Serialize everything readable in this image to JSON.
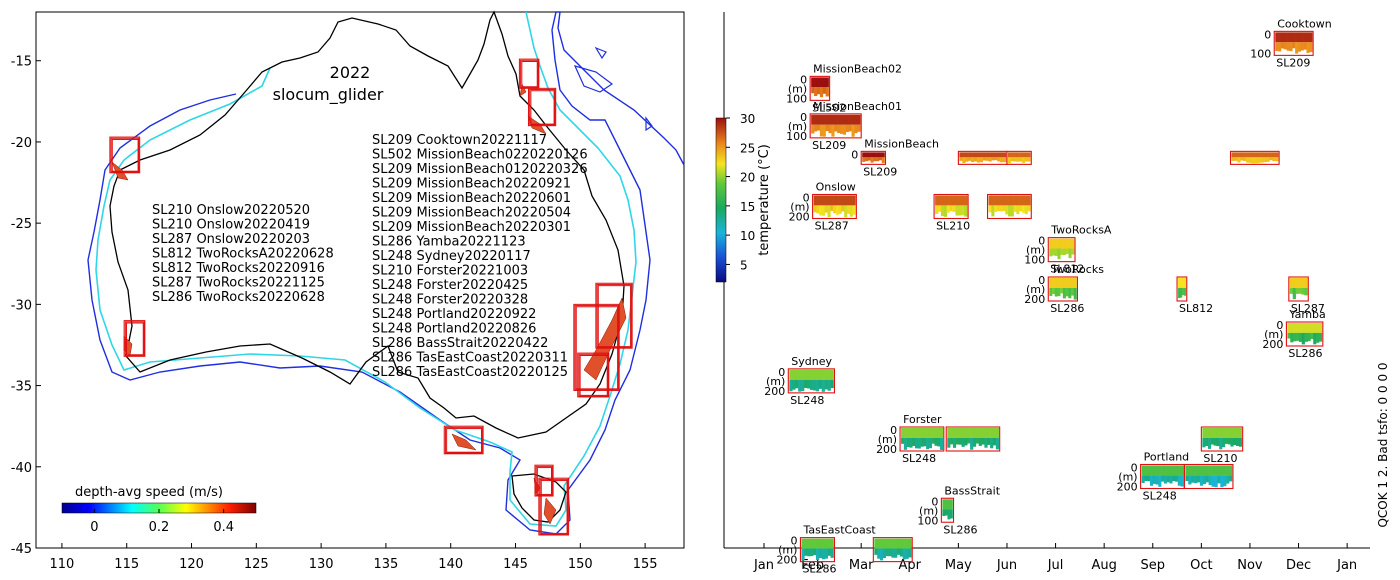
{
  "chart_data": [
    {
      "type": "scatter",
      "panel": "map",
      "title": "2022",
      "subtitle": "slocum_glider",
      "xlim": [
        108,
        158
      ],
      "ylim": [
        -45,
        -12
      ],
      "xticks": [
        "110",
        "115",
        "120",
        "125",
        "130",
        "135",
        "140",
        "145",
        "150",
        "155"
      ],
      "yticks": [
        "-15",
        "-20",
        "-25",
        "-30",
        "-35",
        "-40",
        "-45"
      ],
      "colorbar": {
        "label": "depth-avg speed (m/s)",
        "range": [
          -0.1,
          0.5
        ],
        "ticks": [
          "0",
          "0.2",
          "0.4"
        ]
      },
      "deployments_west": [
        "SL210 Onslow20220520",
        "SL210 Onslow20220419",
        "SL287 Onslow20220203",
        "SL812 TwoRocksA20220628",
        "SL812 TwoRocks20220916",
        "SL287 TwoRocks20221125",
        "SL286 TwoRocks20220628"
      ],
      "deployments_east": [
        "SL209 Cooktown20221117",
        "SL502 MissionBeach0220220126",
        "SL209 MissionBeach0120220326",
        "SL209 MissionBeach20220921",
        "SL209 MissionBeach20220601",
        "SL209 MissionBeach20220504",
        "SL209 MissionBeach20220301",
        "SL286 Yamba20221123",
        "SL248 Sydney20220117",
        "SL210 Forster20221003",
        "SL248 Forster20220425",
        "SL248 Forster20220328",
        "SL248 Portland20220922",
        "SL248 Portland20220826",
        "SL286 BassStrait20220422",
        "SL286 TasEastCoast20220311",
        "SL286 TasEastCoast20220125"
      ],
      "region_boxes": [
        {
          "name": "Onslow",
          "lon": [
            113.7,
            116.0
          ],
          "lat": [
            -21.9,
            -19.7
          ]
        },
        {
          "name": "TwoRocks",
          "lon": [
            114.8,
            116.4
          ],
          "lat": [
            -33.2,
            -31.0
          ]
        },
        {
          "name": "Cooktown",
          "lon": [
            145.3,
            146.8
          ],
          "lat": [
            -16.7,
            -14.9
          ]
        },
        {
          "name": "MissionBeach",
          "lon": [
            146.0,
            148.1
          ],
          "lat": [
            -19.0,
            -16.7
          ]
        },
        {
          "name": "Yamba",
          "lon": [
            151.2,
            154.0
          ],
          "lat": [
            -32.7,
            -28.7
          ]
        },
        {
          "name": "Forster",
          "lon": [
            149.5,
            153.0
          ],
          "lat": [
            -35.3,
            -30.0
          ]
        },
        {
          "name": "Sydney",
          "lon": [
            149.8,
            152.2
          ],
          "lat": [
            -35.7,
            -33.0
          ]
        },
        {
          "name": "Portland",
          "lon": [
            139.5,
            142.5
          ],
          "lat": [
            -39.2,
            -37.5
          ]
        },
        {
          "name": "BassStrait",
          "lon": [
            146.5,
            147.9
          ],
          "lat": [
            -41.8,
            -39.9
          ]
        },
        {
          "name": "TasEastCoast",
          "lon": [
            146.8,
            149.1
          ],
          "lat": [
            -44.2,
            -40.7
          ]
        }
      ]
    },
    {
      "type": "heatmap",
      "panel": "timeline",
      "xlabel": "",
      "months": [
        "Jan",
        "Feb",
        "Mar",
        "Apr",
        "May",
        "Jun",
        "Jul",
        "Aug",
        "Sep",
        "Oct",
        "Nov",
        "Dec",
        "Jan"
      ],
      "xlim_month": [
        0,
        12.3
      ],
      "colorbar": {
        "label": "temperature (°C)",
        "range": [
          2,
          30
        ],
        "ticks": [
          "5",
          "10",
          "15",
          "20",
          "25",
          "30"
        ],
        "tick_values": [
          5,
          10,
          15,
          20,
          25,
          30
        ]
      },
      "side_text": "QCOK 1  2. Bad tsfo: 0  0  0  0",
      "tracks": [
        {
          "region": "Cooktown",
          "glider": "SL209",
          "ticks": [
            "0",
            "100"
          ],
          "unit": "",
          "row": 0.25,
          "segments": [
            [
              10.5,
              11.3,
              27
            ]
          ]
        },
        {
          "region": "MissionBeach02",
          "glider": "SL502",
          "ticks": [
            "0",
            "100"
          ],
          "unit": "(m)",
          "row": 1.45,
          "segments": [
            [
              0.95,
              1.35,
              28
            ]
          ]
        },
        {
          "region": "MissionBeach01",
          "glider": "SL209",
          "ticks": [
            "0",
            "100"
          ],
          "unit": "(m)",
          "row": 2.45,
          "segments": [
            [
              0.95,
              2.0,
              27
            ]
          ]
        },
        {
          "region": "MissionBeach",
          "glider": "SL209",
          "ticks": [
            "0"
          ],
          "unit": "",
          "row": 3.45,
          "segments": [
            [
              2.0,
              2.5,
              28
            ],
            [
              4.0,
              5.0,
              26
            ],
            [
              5.0,
              5.5,
              25
            ],
            [
              9.6,
              10.6,
              25
            ]
          ]
        },
        {
          "region": "Onslow",
          "glider": "SL287",
          "ticks": [
            "0",
            "200"
          ],
          "unit": "(m)",
          "row": 4.6,
          "segments": [
            [
              1.0,
              1.9,
              26
            ],
            [
              3.5,
              4.2,
              25
            ],
            [
              4.6,
              5.5,
              25
            ]
          ]
        },
        {
          "region": "TwoRocksA",
          "glider": "SL812",
          "ticks": [
            "0",
            "100"
          ],
          "unit": "(m)",
          "row": 5.75,
          "segments": [
            [
              5.85,
              6.4,
              21
            ]
          ]
        },
        {
          "region": "TwoRocks",
          "glider": "SL286",
          "ticks": [
            "0",
            "200"
          ],
          "unit": "(m)",
          "row": 6.8,
          "segments": [
            [
              5.85,
              6.45,
              21
            ],
            [
              8.5,
              8.7,
              20
            ],
            [
              10.8,
              11.2,
              21
            ]
          ]
        },
        {
          "region": "Yamba",
          "glider": "SL286",
          "ticks": [
            "0",
            "200"
          ],
          "unit": "(m)",
          "row": 8.0,
          "segments": [
            [
              10.75,
              11.5,
              19
            ]
          ]
        },
        {
          "region": "Sydney",
          "glider": "SL248",
          "ticks": [
            "0",
            "200"
          ],
          "unit": "(m)",
          "row": 9.25,
          "segments": [
            [
              0.5,
              1.45,
              17
            ]
          ]
        },
        {
          "region": "Forster",
          "glider": "SL248",
          "ticks": [
            "0",
            "200"
          ],
          "unit": "(m)",
          "row": 10.8,
          "segments": [
            [
              2.8,
              3.7,
              17
            ],
            [
              3.75,
              4.85,
              17
            ],
            [
              9.0,
              9.85,
              17
            ]
          ]
        },
        {
          "region": "Portland",
          "glider": "SL248",
          "ticks": [
            "0",
            "200"
          ],
          "unit": "(m)",
          "row": 11.8,
          "segments": [
            [
              7.75,
              8.65,
              15
            ],
            [
              8.65,
              9.65,
              15
            ]
          ]
        },
        {
          "region": "BassStrait",
          "glider": "SL286",
          "ticks": [
            "0",
            "100"
          ],
          "unit": "(m)",
          "row": 12.7,
          "segments": [
            [
              3.65,
              3.9,
              15
            ]
          ]
        },
        {
          "region": "TasEastCoast",
          "glider": "SL286",
          "ticks": [
            "0",
            "200"
          ],
          "unit": "(m)",
          "row": 13.75,
          "segments": [
            [
              0.75,
              1.45,
              16
            ],
            [
              2.25,
              3.05,
              16
            ]
          ]
        }
      ],
      "track_label_extra": [
        {
          "region": "Forster",
          "glider": "SL210",
          "at_segment": 2
        },
        {
          "region": "TwoRocks",
          "glider": "SL812",
          "at_segment": 1
        },
        {
          "region": "TwoRocks",
          "glider": "SL287",
          "at_segment": 2
        },
        {
          "region": "Onslow",
          "glider": "SL210",
          "at_segment": 1
        }
      ]
    }
  ]
}
